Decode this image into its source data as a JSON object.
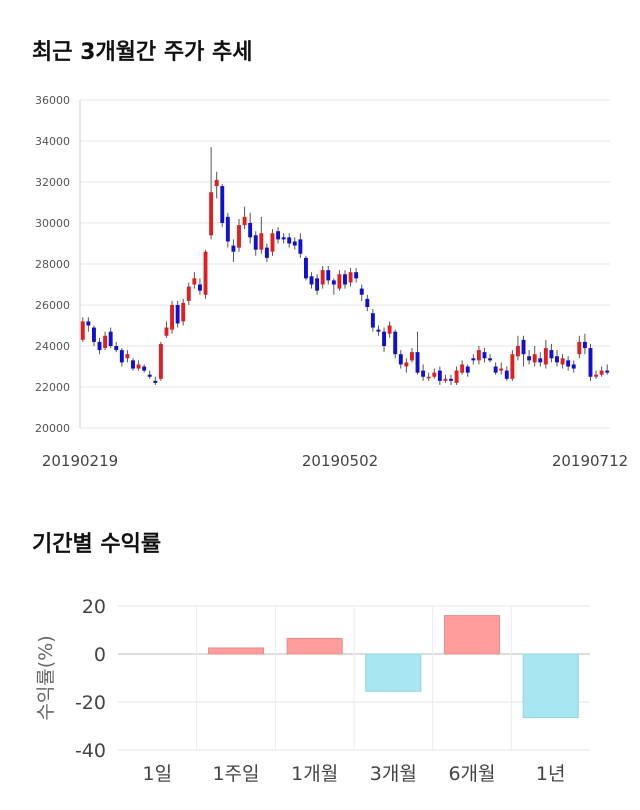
{
  "sections": {
    "price_title": "최근 3개월간 주가 추세",
    "return_title": "기간별 수익률"
  },
  "chart_data": [
    {
      "type": "candlestick",
      "title": "최근 3개월간 주가 추세",
      "ylim": [
        20000,
        36000
      ],
      "y_ticks": [
        "36000",
        "34000",
        "32000",
        "30000",
        "28000",
        "26000",
        "24000",
        "22000",
        "20000"
      ],
      "x_tick_labels": [
        "20190219",
        "20190502",
        "20190712"
      ],
      "grid": true,
      "colors": {
        "up": "#e02020",
        "down": "#1010d0",
        "wick": "#555555"
      },
      "candles": [
        {
          "o": 24300,
          "c": 25200,
          "h": 25400,
          "l": 24200
        },
        {
          "o": 25200,
          "c": 25000,
          "h": 25400,
          "l": 24700
        },
        {
          "o": 24900,
          "c": 24200,
          "h": 25000,
          "l": 24000
        },
        {
          "o": 24200,
          "c": 23800,
          "h": 24400,
          "l": 23600
        },
        {
          "o": 23900,
          "c": 24500,
          "h": 24700,
          "l": 23800
        },
        {
          "o": 24700,
          "c": 24000,
          "h": 24900,
          "l": 23900
        },
        {
          "o": 24000,
          "c": 23800,
          "h": 24200,
          "l": 23700
        },
        {
          "o": 23800,
          "c": 23200,
          "h": 23900,
          "l": 23000
        },
        {
          "o": 23400,
          "c": 23600,
          "h": 23800,
          "l": 23200
        },
        {
          "o": 23300,
          "c": 22900,
          "h": 23400,
          "l": 22800
        },
        {
          "o": 22900,
          "c": 23100,
          "h": 23300,
          "l": 22800
        },
        {
          "o": 23000,
          "c": 22800,
          "h": 23100,
          "l": 22700
        },
        {
          "o": 22600,
          "c": 22500,
          "h": 22800,
          "l": 22400
        },
        {
          "o": 22300,
          "c": 22200,
          "h": 22500,
          "l": 22100
        },
        {
          "o": 22400,
          "c": 24100,
          "h": 24200,
          "l": 22300
        },
        {
          "o": 24500,
          "c": 24900,
          "h": 25200,
          "l": 24400
        },
        {
          "o": 24800,
          "c": 26000,
          "h": 26200,
          "l": 24600
        },
        {
          "o": 26000,
          "c": 25100,
          "h": 26200,
          "l": 24900
        },
        {
          "o": 25200,
          "c": 26100,
          "h": 26300,
          "l": 25000
        },
        {
          "o": 26200,
          "c": 26900,
          "h": 27100,
          "l": 26000
        },
        {
          "o": 27000,
          "c": 27300,
          "h": 27600,
          "l": 26800
        },
        {
          "o": 27000,
          "c": 26700,
          "h": 27300,
          "l": 26500
        },
        {
          "o": 26500,
          "c": 28600,
          "h": 28700,
          "l": 26300
        },
        {
          "o": 29400,
          "c": 31500,
          "h": 33700,
          "l": 29200
        },
        {
          "o": 31800,
          "c": 32100,
          "h": 32500,
          "l": 31200
        },
        {
          "o": 31800,
          "c": 30000,
          "h": 31900,
          "l": 29800
        },
        {
          "o": 30300,
          "c": 29100,
          "h": 30500,
          "l": 28800
        },
        {
          "o": 28900,
          "c": 28600,
          "h": 29200,
          "l": 28100
        },
        {
          "o": 28800,
          "c": 29900,
          "h": 30200,
          "l": 28600
        },
        {
          "o": 29900,
          "c": 30300,
          "h": 30800,
          "l": 29700
        },
        {
          "o": 30000,
          "c": 29300,
          "h": 30500,
          "l": 29000
        },
        {
          "o": 29400,
          "c": 28700,
          "h": 29600,
          "l": 28400
        },
        {
          "o": 28700,
          "c": 29500,
          "h": 30300,
          "l": 28500
        },
        {
          "o": 28800,
          "c": 28300,
          "h": 29000,
          "l": 28100
        },
        {
          "o": 28600,
          "c": 29500,
          "h": 29700,
          "l": 28400
        },
        {
          "o": 29600,
          "c": 29200,
          "h": 29800,
          "l": 29000
        },
        {
          "o": 29300,
          "c": 29200,
          "h": 29500,
          "l": 29000
        },
        {
          "o": 29300,
          "c": 29000,
          "h": 29500,
          "l": 28800
        },
        {
          "o": 29100,
          "c": 28900,
          "h": 29300,
          "l": 28700
        },
        {
          "o": 29200,
          "c": 28500,
          "h": 29500,
          "l": 28300
        },
        {
          "o": 28300,
          "c": 27300,
          "h": 28400,
          "l": 27200
        },
        {
          "o": 27400,
          "c": 27000,
          "h": 27600,
          "l": 26800
        },
        {
          "o": 27300,
          "c": 26700,
          "h": 27500,
          "l": 26500
        },
        {
          "o": 27000,
          "c": 27700,
          "h": 27900,
          "l": 26800
        },
        {
          "o": 27700,
          "c": 27200,
          "h": 27900,
          "l": 27000
        },
        {
          "o": 27200,
          "c": 27000,
          "h": 27300,
          "l": 26500
        },
        {
          "o": 26800,
          "c": 27500,
          "h": 27700,
          "l": 26700
        },
        {
          "o": 27500,
          "c": 27000,
          "h": 27700,
          "l": 26800
        },
        {
          "o": 27100,
          "c": 27600,
          "h": 27800,
          "l": 26900
        },
        {
          "o": 27600,
          "c": 27300,
          "h": 27800,
          "l": 27100
        },
        {
          "o": 26800,
          "c": 26500,
          "h": 27000,
          "l": 26200
        },
        {
          "o": 26300,
          "c": 25900,
          "h": 26500,
          "l": 25700
        },
        {
          "o": 25600,
          "c": 24900,
          "h": 25800,
          "l": 24700
        },
        {
          "o": 24800,
          "c": 24700,
          "h": 25000,
          "l": 24500
        },
        {
          "o": 24700,
          "c": 24000,
          "h": 24900,
          "l": 23700
        },
        {
          "o": 24600,
          "c": 25000,
          "h": 25200,
          "l": 24400
        },
        {
          "o": 24700,
          "c": 23600,
          "h": 24800,
          "l": 23400
        },
        {
          "o": 23600,
          "c": 23100,
          "h": 23800,
          "l": 22900
        },
        {
          "o": 23000,
          "c": 23200,
          "h": 23400,
          "l": 22700
        },
        {
          "o": 23300,
          "c": 23700,
          "h": 23900,
          "l": 23200
        },
        {
          "o": 23700,
          "c": 22700,
          "h": 24700,
          "l": 22600
        },
        {
          "o": 22800,
          "c": 22500,
          "h": 23100,
          "l": 22300
        },
        {
          "o": 22500,
          "c": 22500,
          "h": 22700,
          "l": 22300
        },
        {
          "o": 22500,
          "c": 22700,
          "h": 22900,
          "l": 22400
        },
        {
          "o": 22800,
          "c": 22300,
          "h": 23000,
          "l": 22100
        },
        {
          "o": 22300,
          "c": 22400,
          "h": 22600,
          "l": 22200
        },
        {
          "o": 22400,
          "c": 22300,
          "h": 22600,
          "l": 22100
        },
        {
          "o": 22200,
          "c": 22800,
          "h": 23000,
          "l": 22100
        },
        {
          "o": 22700,
          "c": 23100,
          "h": 23300,
          "l": 22600
        },
        {
          "o": 23000,
          "c": 22700,
          "h": 23100,
          "l": 22500
        },
        {
          "o": 23400,
          "c": 23300,
          "h": 23600,
          "l": 23100
        },
        {
          "o": 23300,
          "c": 23800,
          "h": 24000,
          "l": 23100
        },
        {
          "o": 23700,
          "c": 23400,
          "h": 23900,
          "l": 23200
        },
        {
          "o": 23400,
          "c": 23300,
          "h": 23600,
          "l": 23200
        },
        {
          "o": 23000,
          "c": 22700,
          "h": 23200,
          "l": 22600
        },
        {
          "o": 22800,
          "c": 22900,
          "h": 23200,
          "l": 22600
        },
        {
          "o": 22800,
          "c": 22400,
          "h": 23000,
          "l": 22300
        },
        {
          "o": 22400,
          "c": 23600,
          "h": 23800,
          "l": 22300
        },
        {
          "o": 23500,
          "c": 24000,
          "h": 24500,
          "l": 23300
        },
        {
          "o": 24300,
          "c": 23600,
          "h": 24500,
          "l": 23000
        },
        {
          "o": 23500,
          "c": 23300,
          "h": 23800,
          "l": 23100
        },
        {
          "o": 23200,
          "c": 23600,
          "h": 24000,
          "l": 23000
        },
        {
          "o": 23400,
          "c": 23200,
          "h": 23700,
          "l": 23000
        },
        {
          "o": 23100,
          "c": 23900,
          "h": 24300,
          "l": 22900
        },
        {
          "o": 23800,
          "c": 23400,
          "h": 24100,
          "l": 23200
        },
        {
          "o": 23500,
          "c": 23200,
          "h": 23800,
          "l": 23000
        },
        {
          "o": 23100,
          "c": 23400,
          "h": 23600,
          "l": 22900
        },
        {
          "o": 23300,
          "c": 23000,
          "h": 23500,
          "l": 22800
        },
        {
          "o": 23100,
          "c": 22900,
          "h": 23300,
          "l": 22700
        },
        {
          "o": 23600,
          "c": 24200,
          "h": 24500,
          "l": 23400
        },
        {
          "o": 24200,
          "c": 23900,
          "h": 24600,
          "l": 23600
        },
        {
          "o": 23900,
          "c": 22500,
          "h": 24100,
          "l": 22300
        },
        {
          "o": 22500,
          "c": 22600,
          "h": 22800,
          "l": 22400
        },
        {
          "o": 22600,
          "c": 22800,
          "h": 23000,
          "l": 22500
        },
        {
          "o": 22800,
          "c": 22700,
          "h": 23100,
          "l": 22600
        }
      ]
    },
    {
      "type": "bar",
      "title": "기간별 수익률",
      "ylabel": "수익률(%)",
      "categories": [
        "1일",
        "1주일",
        "1개월",
        "3개월",
        "6개월",
        "1년"
      ],
      "values": [
        0,
        2.5,
        6.5,
        -15.5,
        16,
        -26.5
      ],
      "ylim": [
        -40,
        20
      ],
      "y_ticks": [
        "20",
        "0",
        "-20",
        "-40"
      ],
      "grid": true,
      "colors": {
        "positive": "#ff9c9c",
        "negative": "#a8e6f2"
      }
    }
  ]
}
